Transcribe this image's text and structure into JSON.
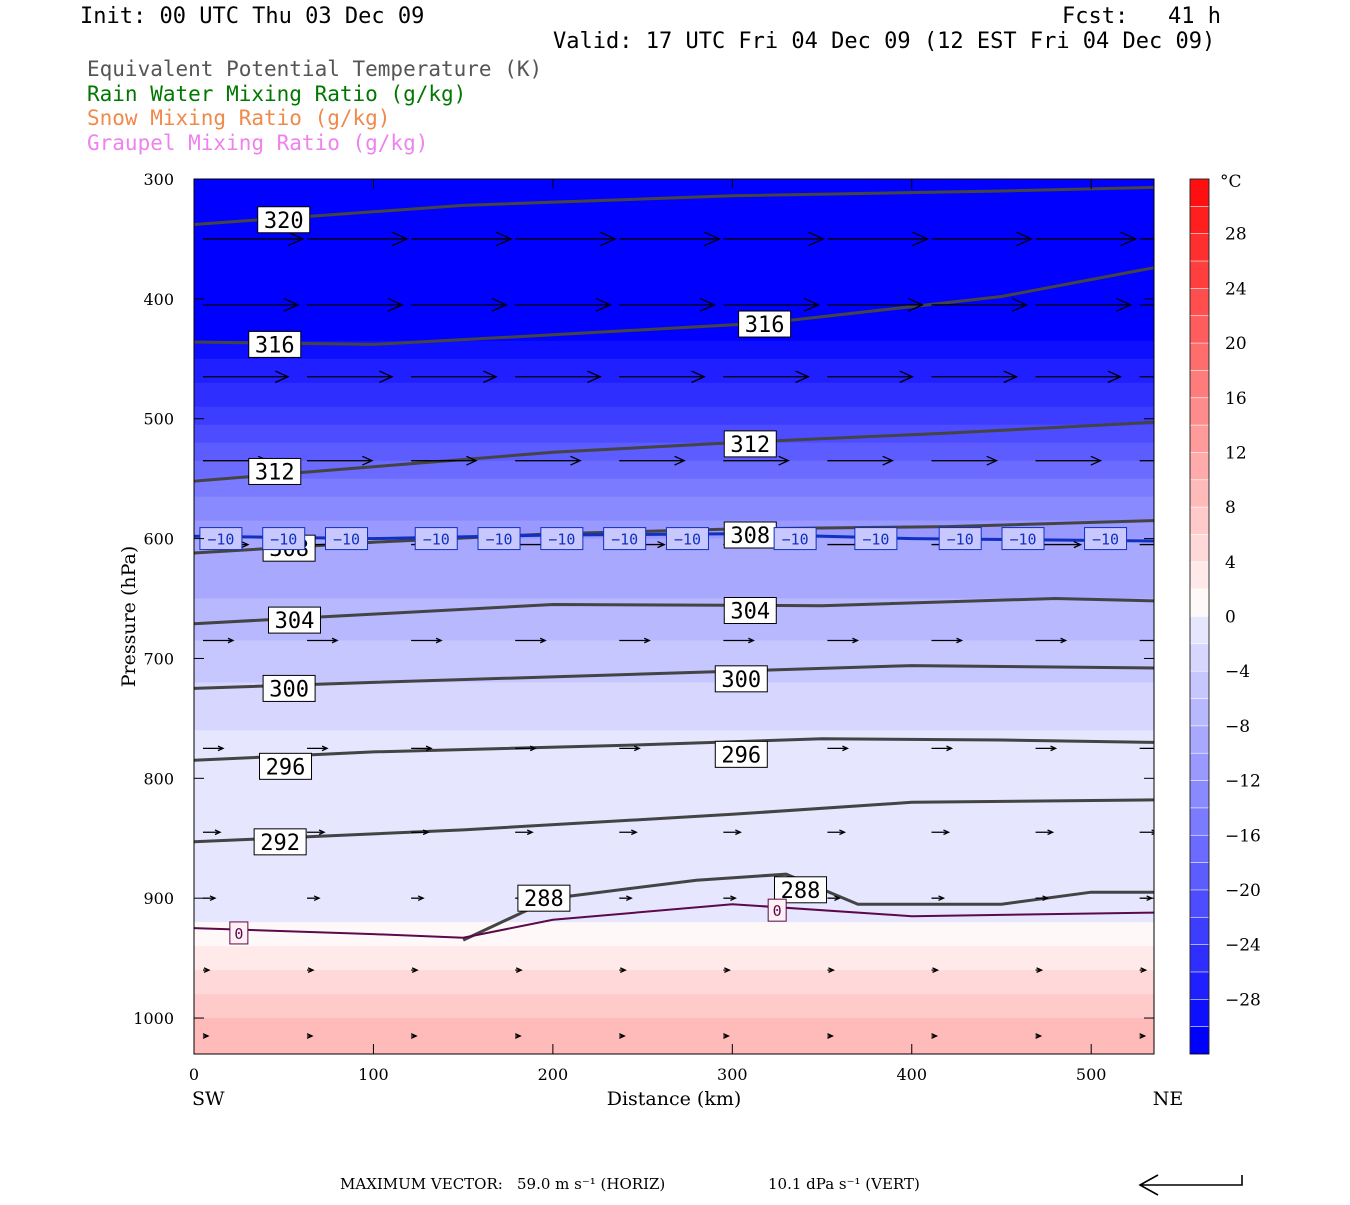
{
  "header": {
    "init": "Init: 00 UTC Thu 03 Dec 09",
    "fcst": "Fcst:   41 h",
    "valid": "Valid: 17 UTC Fri 04 Dec 09 (12 EST Fri 04 Dec 09)"
  },
  "legend": [
    {
      "label": "Equivalent Potential Temperature (K)",
      "color": "#555555"
    },
    {
      "label": "Rain Water Mixing Ratio (g/kg)",
      "color": "#007700"
    },
    {
      "label": "Snow Mixing Ratio (g/kg)",
      "color": "#f08a4b"
    },
    {
      "label": "Graupel Mixing Ratio (g/kg)",
      "color": "#ee82ee"
    }
  ],
  "chart_data": {
    "type": "heatmap",
    "xlabel": "Distance (km)",
    "ylabel": "Pressure (hPa)",
    "xlim": [
      0,
      535
    ],
    "ylim": [
      1030,
      300
    ],
    "x_ticks": [
      0,
      100,
      200,
      300,
      400,
      500
    ],
    "y_ticks": [
      300,
      400,
      500,
      600,
      700,
      800,
      900,
      1000
    ],
    "x_end_labels": {
      "left": "SW",
      "right": "NE"
    },
    "fill": {
      "variable": "Temperature",
      "unit": "°C",
      "levels": [
        -32,
        -30,
        -28,
        -26,
        -24,
        -22,
        -20,
        -18,
        -16,
        -14,
        -12,
        -10,
        -8,
        -6,
        -4,
        -2,
        0,
        2,
        4,
        6,
        8,
        10,
        12,
        14,
        16,
        18,
        20,
        22,
        24,
        26,
        28,
        30,
        32
      ],
      "colorbar_ticks": [
        28,
        24,
        20,
        16,
        12,
        8,
        4,
        0,
        -4,
        -8,
        -12,
        -16,
        -20,
        -24,
        -28
      ],
      "colorbar_unit_label": "°C",
      "temperature_profile": [
        {
          "p": 300,
          "t": -46
        },
        {
          "p": 400,
          "t": -34
        },
        {
          "p": 460,
          "t": -27
        },
        {
          "p": 500,
          "t": -23
        },
        {
          "p": 550,
          "t": -16
        },
        {
          "p": 600,
          "t": -10
        },
        {
          "p": 650,
          "t": -8
        },
        {
          "p": 700,
          "t": -5
        },
        {
          "p": 760,
          "t": -2
        },
        {
          "p": 850,
          "t": -1
        },
        {
          "p": 920,
          "t": 0
        },
        {
          "p": 960,
          "t": 4
        },
        {
          "p": 1000,
          "t": 8
        },
        {
          "p": 1030,
          "t": 10
        }
      ]
    },
    "theta_e_contours": [
      {
        "value": 320,
        "points": [
          [
            0,
            338
          ],
          [
            150,
            322
          ],
          [
            300,
            314
          ],
          [
            450,
            310
          ],
          [
            535,
            307
          ]
        ],
        "label": "320",
        "label_at": [
          50,
          334
        ]
      },
      {
        "value": 316,
        "points": [
          [
            0,
            436
          ],
          [
            100,
            438
          ],
          [
            200,
            430
          ],
          [
            320,
            420
          ],
          [
            450,
            398
          ],
          [
            535,
            374
          ]
        ],
        "label": "316",
        "label_at": [
          45,
          438
        ]
      },
      {
        "value": 316,
        "points": [],
        "label": "316",
        "label_at": [
          318,
          421
        ]
      },
      {
        "value": 312,
        "points": [
          [
            0,
            552
          ],
          [
            100,
            540
          ],
          [
            200,
            528
          ],
          [
            300,
            520
          ],
          [
            420,
            512
          ],
          [
            535,
            503
          ]
        ],
        "label": "312",
        "label_at": [
          45,
          544
        ]
      },
      {
        "value": 312,
        "points": [],
        "label": "312",
        "label_at": [
          310,
          521
        ]
      },
      {
        "value": 308,
        "points": [
          [
            0,
            612
          ],
          [
            100,
            603
          ],
          [
            200,
            596
          ],
          [
            300,
            592
          ],
          [
            420,
            590
          ],
          [
            535,
            585
          ]
        ],
        "label": "308",
        "label_at": [
          53,
          608
        ]
      },
      {
        "value": 308,
        "points": [],
        "label": "308",
        "label_at": [
          310,
          597
        ]
      },
      {
        "value": 304,
        "points": [
          [
            0,
            671
          ],
          [
            100,
            663
          ],
          [
            200,
            655
          ],
          [
            350,
            656
          ],
          [
            480,
            650
          ],
          [
            535,
            652
          ]
        ],
        "label": "304",
        "label_at": [
          56,
          668
        ]
      },
      {
        "value": 304,
        "points": [],
        "label": "304",
        "label_at": [
          310,
          660
        ]
      },
      {
        "value": 300,
        "points": [
          [
            0,
            725
          ],
          [
            100,
            720
          ],
          [
            250,
            713
          ],
          [
            400,
            706
          ],
          [
            535,
            708
          ]
        ],
        "label": "300",
        "label_at": [
          53,
          725
        ]
      },
      {
        "value": 300,
        "points": [],
        "label": "300",
        "label_at": [
          305,
          717
        ]
      },
      {
        "value": 296,
        "points": [
          [
            0,
            785
          ],
          [
            100,
            778
          ],
          [
            250,
            772
          ],
          [
            350,
            767
          ],
          [
            450,
            768
          ],
          [
            535,
            770
          ]
        ],
        "label": "296",
        "label_at": [
          51,
          790
        ]
      },
      {
        "value": 296,
        "points": [],
        "label": "296",
        "label_at": [
          305,
          780
        ]
      },
      {
        "value": 292,
        "points": [
          [
            0,
            853
          ],
          [
            150,
            843
          ],
          [
            300,
            830
          ],
          [
            400,
            820
          ],
          [
            535,
            818
          ]
        ],
        "label": "292",
        "label_at": [
          48,
          853
        ]
      },
      {
        "value": 288,
        "points": [
          [
            150,
            935
          ],
          [
            200,
            900
          ],
          [
            280,
            885
          ],
          [
            330,
            880
          ],
          [
            370,
            905
          ],
          [
            450,
            905
          ],
          [
            500,
            895
          ],
          [
            535,
            895
          ]
        ],
        "label": "288",
        "label_at": [
          195,
          900
        ]
      },
      {
        "value": 288,
        "points": [],
        "label": "288",
        "label_at": [
          338,
          893
        ]
      }
    ],
    "temp_line_neg10": {
      "value": -10,
      "points": [
        [
          0,
          598
        ],
        [
          100,
          600
        ],
        [
          200,
          597
        ],
        [
          300,
          596
        ],
        [
          400,
          600
        ],
        [
          535,
          602
        ]
      ]
    },
    "temp_line_zero": {
      "value": 0,
      "points": [
        [
          0,
          925
        ],
        [
          100,
          930
        ],
        [
          150,
          933
        ],
        [
          200,
          918
        ],
        [
          300,
          905
        ],
        [
          400,
          915
        ],
        [
          535,
          912
        ]
      ]
    },
    "neg10_label": "−10",
    "zero_label": "0",
    "wind_vectors": [
      {
        "p": 350,
        "us": 1.0
      },
      {
        "p": 405,
        "us": 0.95
      },
      {
        "p": 465,
        "us": 0.85
      },
      {
        "p": 535,
        "us": 0.65
      },
      {
        "p": 605,
        "us": 0.45
      },
      {
        "p": 685,
        "us": 0.3
      },
      {
        "p": 775,
        "us": 0.2
      },
      {
        "p": 845,
        "us": 0.17
      },
      {
        "p": 900,
        "us": 0.12
      },
      {
        "p": 960,
        "us": 0.06
      },
      {
        "p": 1015,
        "us": 0.05
      }
    ]
  },
  "footer": {
    "label": "MAXIMUM VECTOR:",
    "horiz": "59.0 m s⁻¹ (HORIZ)",
    "vert": "10.1 dPa s⁻¹ (VERT)"
  }
}
